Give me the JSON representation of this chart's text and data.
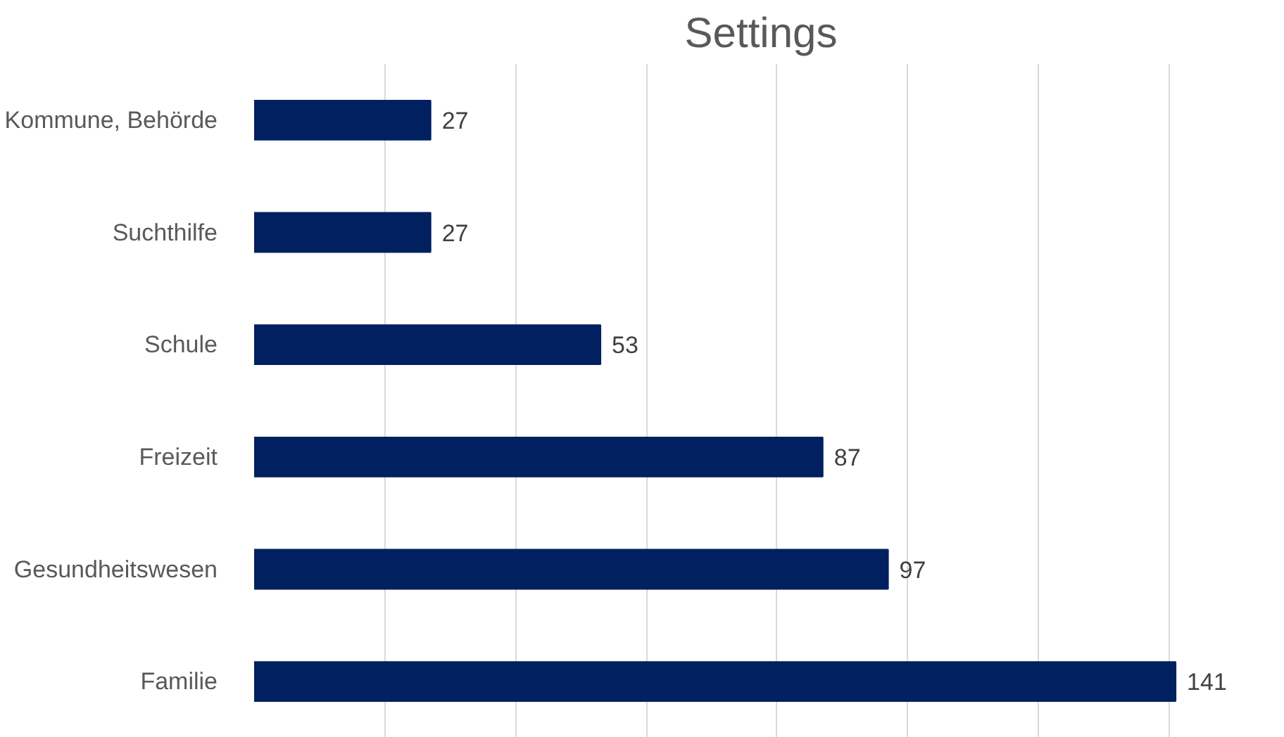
{
  "chart_data": {
    "type": "bar",
    "orientation": "horizontal",
    "title": "Settings",
    "categories": [
      "Kommune, Behörde",
      "Suchthilfe",
      "Schule",
      "Freizeit",
      "Gesundheitswesen",
      "Familie"
    ],
    "values": [
      27,
      27,
      53,
      87,
      97,
      141
    ],
    "color": "#002060",
    "grid": "x",
    "tick_labels": "y",
    "data_labels": true
  }
}
